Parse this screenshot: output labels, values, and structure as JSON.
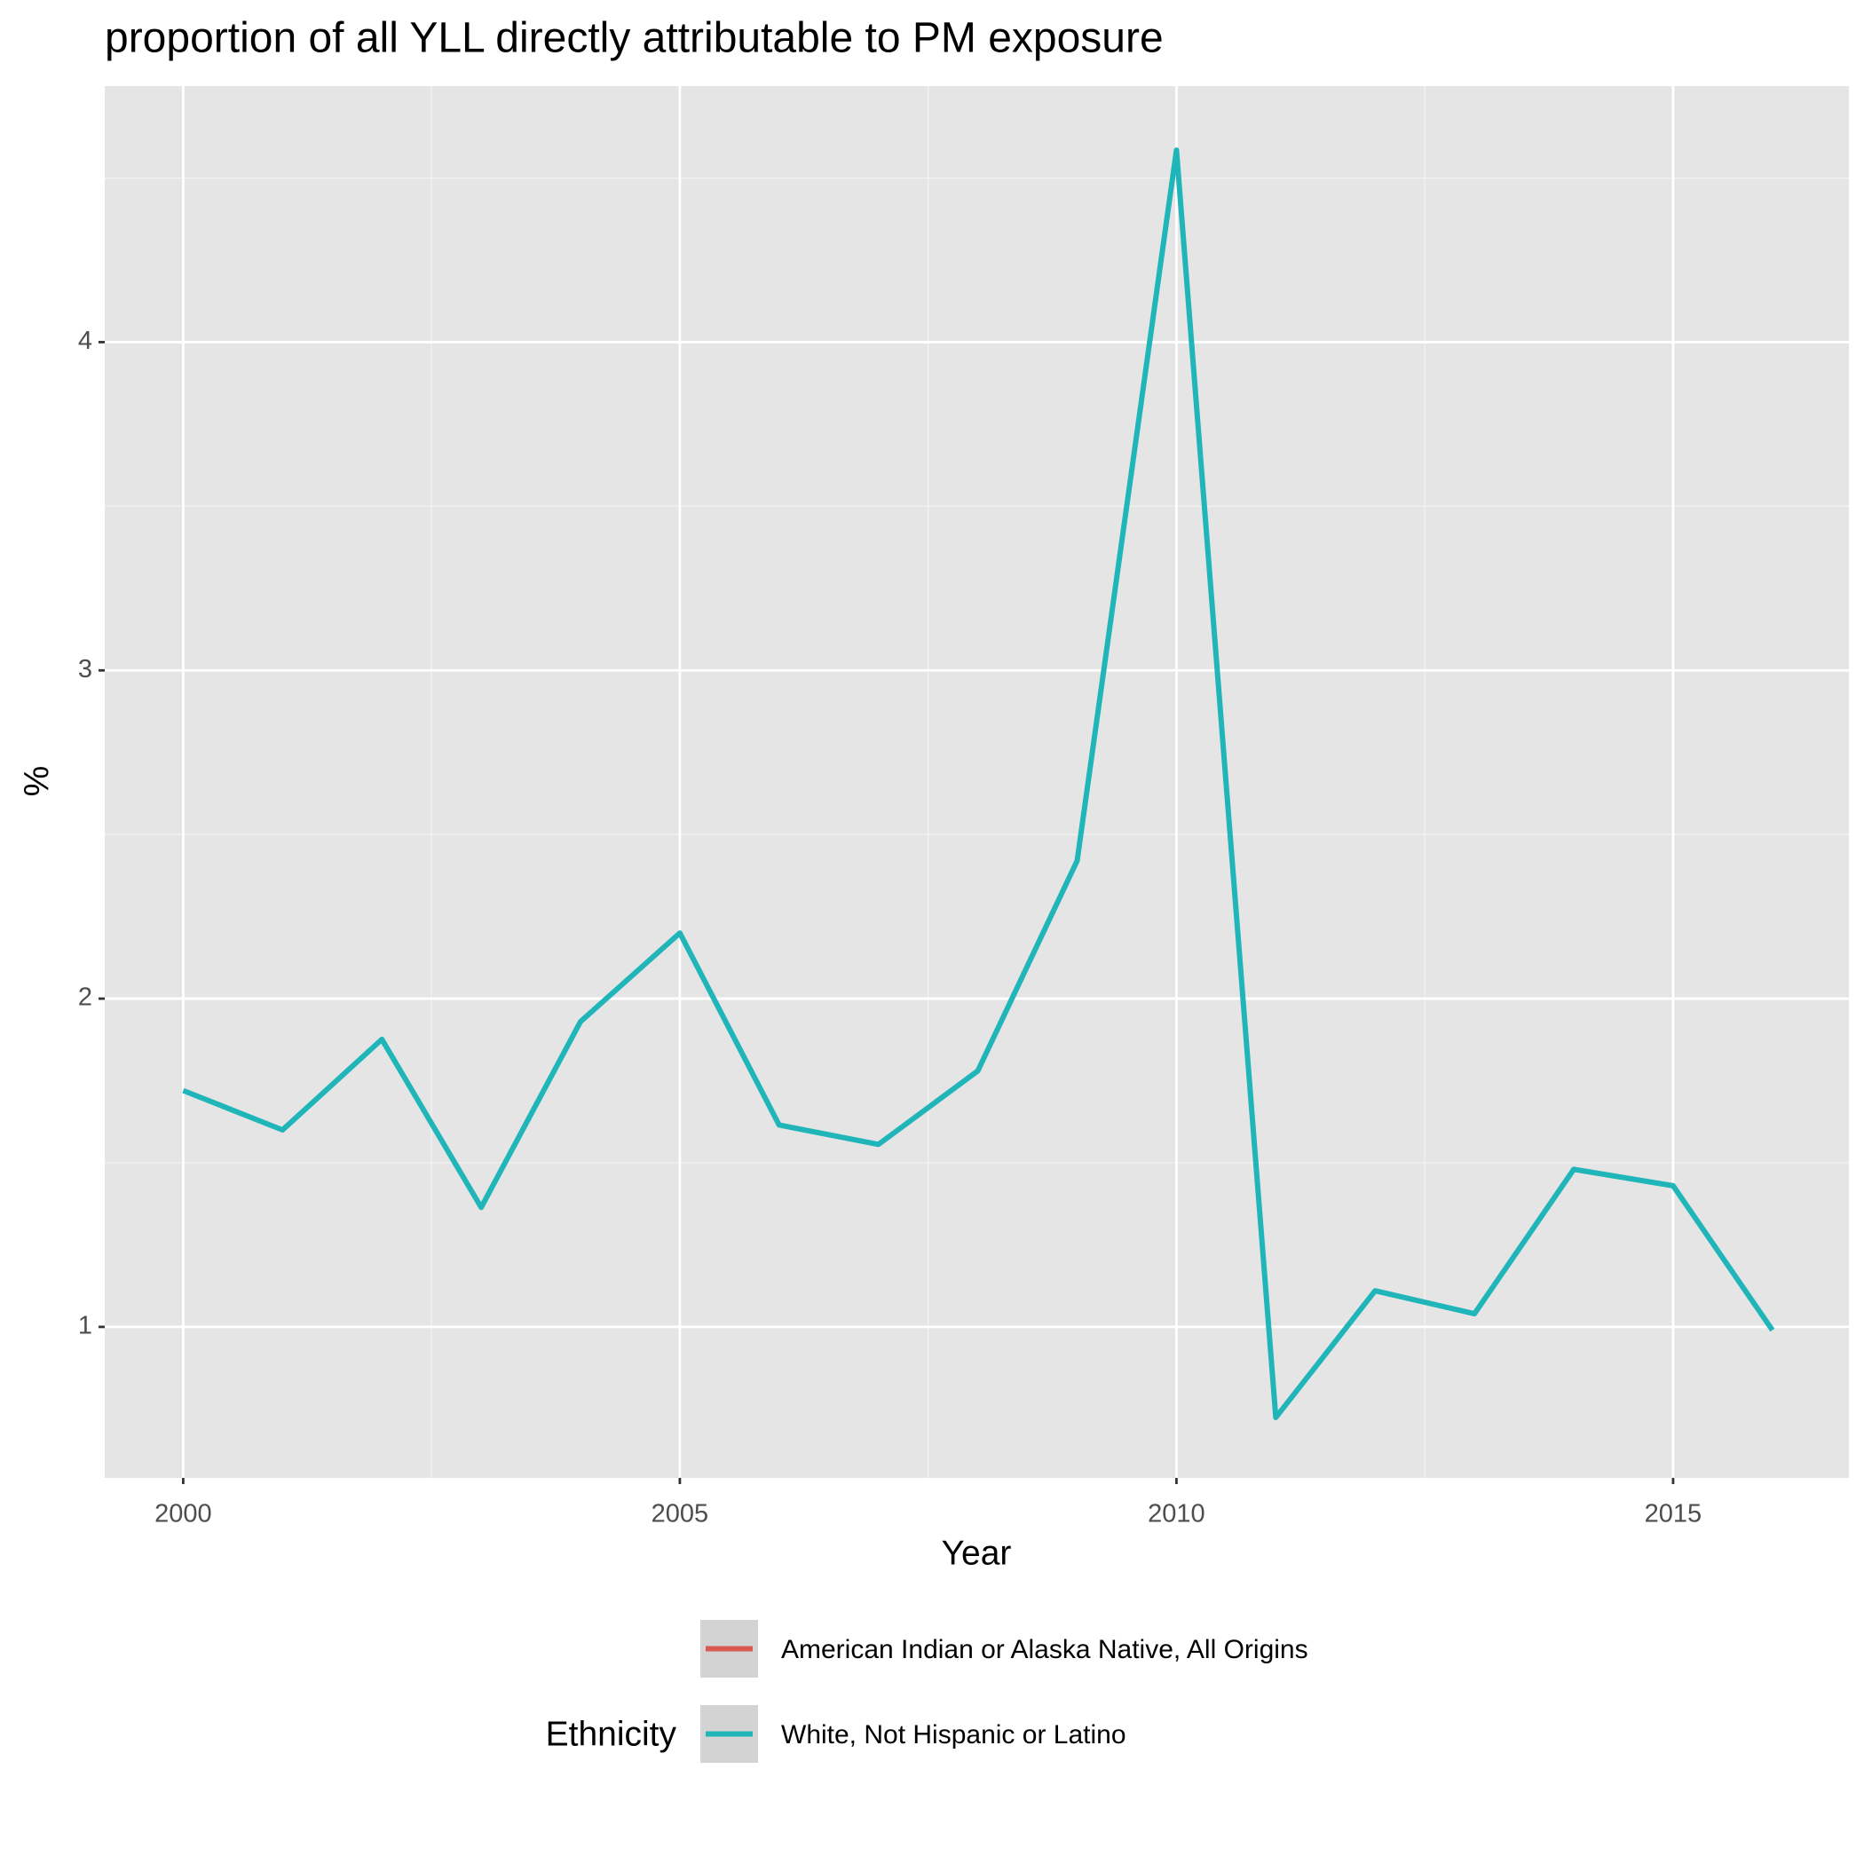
{
  "chart_data": {
    "type": "line",
    "title": "proportion of all YLL directly attributable to PM exposure",
    "x_label": "Year",
    "y_label": "%",
    "legend_title": "Ethnicity",
    "legend_position": "bottom",
    "x": [
      2000,
      2001,
      2002,
      2003,
      2004,
      2005,
      2006,
      2007,
      2008,
      2009,
      2010,
      2011,
      2012,
      2013,
      2014,
      2015,
      2016
    ],
    "series": [
      {
        "name": "American Indian or Alaska Native, All Origins",
        "color": "#d95a50",
        "values": [
          null,
          null,
          null,
          null,
          null,
          null,
          null,
          null,
          null,
          null,
          null,
          null,
          null,
          null,
          null,
          null,
          null
        ]
      },
      {
        "name": "White, Not Hispanic or Latino",
        "color": "#1fb5b9",
        "values": [
          1.72,
          1.6,
          1.876,
          1.364,
          1.93,
          2.2,
          1.615,
          1.556,
          1.78,
          2.42,
          4.585,
          0.724,
          1.11,
          1.04,
          1.48,
          1.43,
          0.99
        ]
      }
    ],
    "xlim": [
      1999.21,
      2016.77
    ],
    "xticks": [
      2000,
      2005,
      2010,
      2015
    ],
    "ylim": [
      0.54,
      4.78
    ],
    "yticks": [
      1,
      2,
      3,
      4
    ],
    "grid": true
  }
}
